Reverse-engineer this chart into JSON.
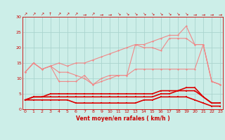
{
  "xlabel": "Vent moyen/en rafales ( km/h )",
  "background_color": "#cceee8",
  "grid_color": "#aad4ce",
  "x_values": [
    0,
    1,
    2,
    3,
    4,
    5,
    6,
    7,
    8,
    9,
    10,
    11,
    12,
    13,
    14,
    15,
    16,
    17,
    18,
    19,
    20,
    21,
    22,
    23
  ],
  "series": [
    {
      "name": "light1",
      "color": "#f08888",
      "linewidth": 0.8,
      "marker": "D",
      "markersize": 1.5,
      "y": [
        12,
        15,
        13,
        14,
        15,
        14,
        15,
        15,
        16,
        17,
        18,
        19,
        20,
        21,
        21,
        22,
        23,
        24,
        24,
        27,
        21,
        21,
        9,
        8
      ]
    },
    {
      "name": "light2",
      "color": "#f08888",
      "linewidth": 0.8,
      "marker": "D",
      "markersize": 1.5,
      "y": [
        12,
        15,
        13,
        14,
        12,
        12,
        11,
        10,
        8,
        10,
        11,
        11,
        11,
        21,
        20,
        20,
        19,
        23,
        23,
        23,
        21,
        21,
        9,
        8
      ]
    },
    {
      "name": "light3",
      "color": "#f08888",
      "linewidth": 0.8,
      "marker": "D",
      "markersize": 1.5,
      "y": [
        12,
        15,
        13,
        14,
        9,
        9,
        9,
        11,
        8,
        9,
        10,
        11,
        11,
        13,
        13,
        13,
        13,
        13,
        13,
        13,
        13,
        21,
        9,
        8
      ]
    },
    {
      "name": "dark1",
      "color": "#dd0000",
      "linewidth": 1.2,
      "marker": "s",
      "markersize": 1.5,
      "y": [
        3,
        4,
        4,
        5,
        5,
        5,
        5,
        5,
        5,
        5,
        5,
        5,
        5,
        5,
        5,
        5,
        6,
        6,
        6,
        7,
        7,
        4,
        2,
        2
      ]
    },
    {
      "name": "dark2",
      "color": "#dd0000",
      "linewidth": 1.2,
      "marker": "s",
      "markersize": 1.5,
      "y": [
        3,
        4,
        4,
        4,
        4,
        4,
        4,
        4,
        4,
        4,
        4,
        4,
        4,
        4,
        4,
        4,
        5,
        5,
        6,
        6,
        6,
        4,
        2,
        2
      ]
    },
    {
      "name": "dark3",
      "color": "#dd0000",
      "linewidth": 1.2,
      "marker": "s",
      "markersize": 1.5,
      "y": [
        3,
        3,
        3,
        3,
        3,
        3,
        2,
        2,
        2,
        2,
        2,
        2,
        2,
        2,
        3,
        3,
        4,
        4,
        4,
        4,
        3,
        2,
        1,
        1
      ]
    }
  ],
  "ylim": [
    0,
    30
  ],
  "yticks": [
    0,
    5,
    10,
    15,
    20,
    25,
    30
  ],
  "xlim": [
    -0.3,
    23.3
  ],
  "xticks": [
    0,
    1,
    2,
    3,
    4,
    5,
    6,
    7,
    8,
    9,
    10,
    11,
    12,
    13,
    14,
    15,
    16,
    17,
    18,
    19,
    20,
    21,
    22,
    23
  ],
  "arrow_labels": [
    "↗",
    "↗",
    "↗",
    "↑",
    "↗",
    "↗",
    "↗",
    "→",
    "↗",
    "→",
    "→",
    "↘",
    "↘",
    "↘",
    "↘",
    "↘",
    "↘",
    "↘",
    "↘",
    "↘",
    "→",
    "→",
    "→",
    "→"
  ]
}
